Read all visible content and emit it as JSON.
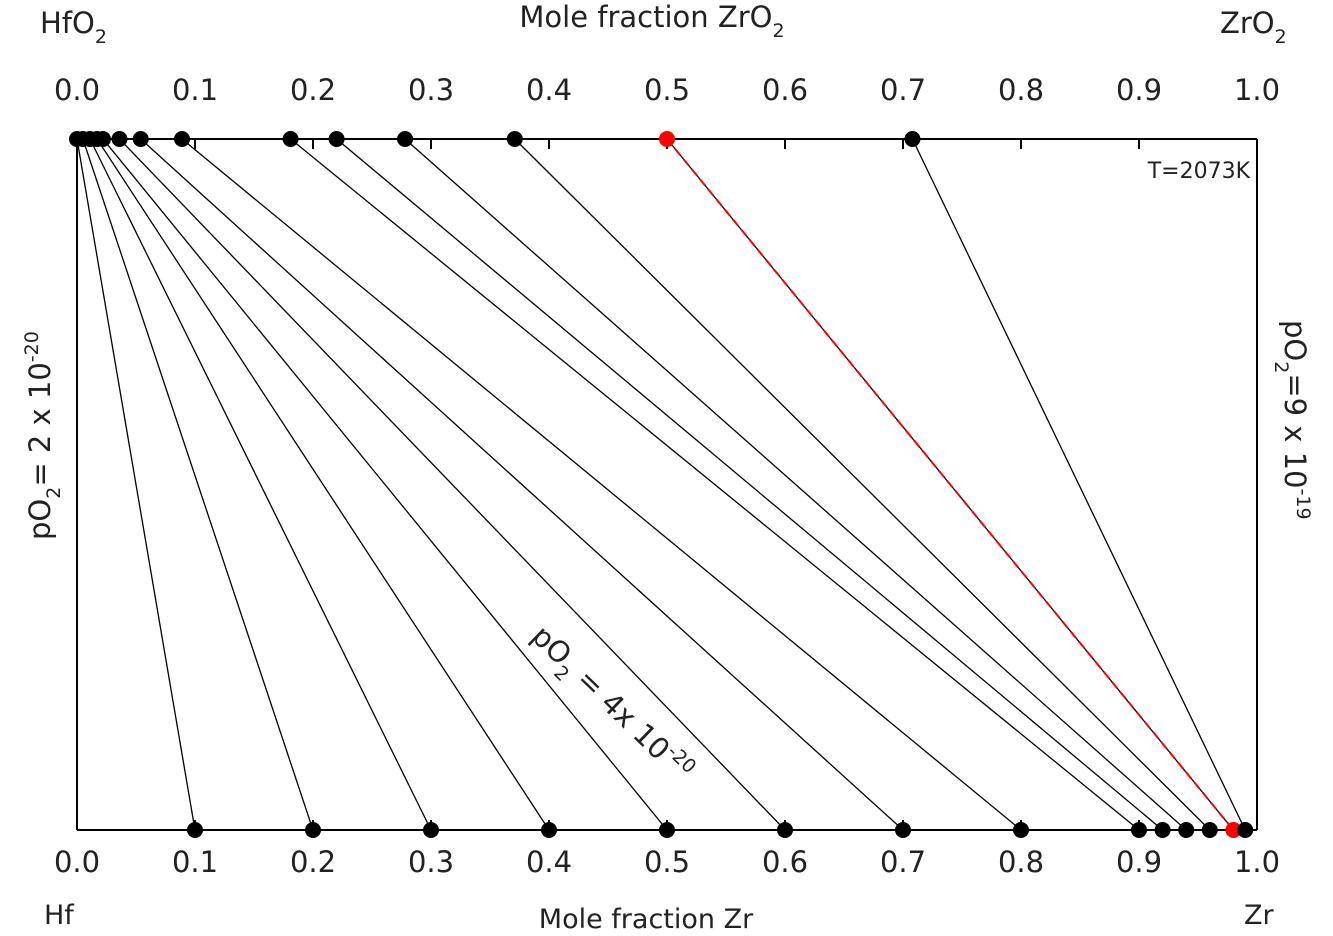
{
  "chart_data": {
    "type": "tieline",
    "x_label": "Mole fraction Zr",
    "x2_label": [
      "Mole fraction ZrO",
      "2"
    ],
    "left_top_label": [
      "HfO",
      "2"
    ],
    "right_top_label": [
      "ZrO",
      "2"
    ],
    "left_bottom_label": "Hf",
    "right_bottom_label": "Zr",
    "annotation": "T=2073K",
    "left_label": [
      "pO",
      "2",
      "= 2 x 10",
      "-20"
    ],
    "right_label": [
      "pO",
      "2",
      "=9 x 10",
      "-19"
    ],
    "line_label": [
      "pO",
      "2",
      " = 4x 10",
      "-20"
    ],
    "xlim": [
      0,
      1
    ],
    "x2lim": [
      0,
      1
    ],
    "xticks": [
      {
        "value": 0,
        "label": "0.0"
      },
      0.1,
      0.2,
      0.3,
      0.4,
      0.5,
      0.6,
      0.7,
      0.8,
      0.9,
      {
        "value": 1,
        "label": "1.0"
      }
    ],
    "x2ticks": [
      {
        "value": 0,
        "label": "0.0"
      },
      0.1,
      0.2,
      0.3,
      0.4,
      0.5,
      0.6,
      0.7,
      0.8,
      0.9,
      {
        "value": 1,
        "label": "1.0"
      }
    ],
    "x": [
      0.1,
      0.2,
      0.3,
      0.4,
      0.5,
      0.6,
      0.7,
      0.8,
      0.9,
      0.92,
      0.94,
      0.96,
      0.98,
      0.99
    ],
    "x2": [
      0.0,
      0.005,
      0.011,
      0.017,
      0.022,
      0.036,
      0.054,
      0.089,
      0.181,
      0.22,
      0.278,
      0.371,
      0.5,
      0.708
    ],
    "color": "#000000",
    "highlight": {
      "index": 12,
      "color": "#ff0000"
    }
  }
}
